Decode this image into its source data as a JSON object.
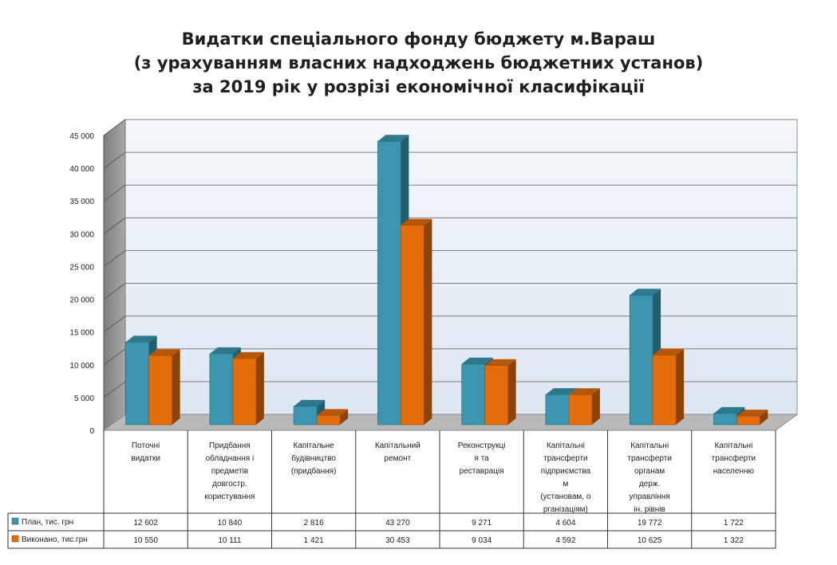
{
  "chart_data": {
    "type": "bar",
    "title_lines": [
      "Видатки спеціального фонду бюджету м.Вараш",
      "(з урахуванням власних надходжень бюджетних установ)",
      "за 2019 рік у розрізі економічної класифікації"
    ],
    "categories": [
      [
        "Поточні",
        "видатки"
      ],
      [
        "Придбання",
        "обладнання і",
        "предметів",
        "довгостр.",
        "користування"
      ],
      [
        "Капітальне",
        "будівництво",
        "(придбання)"
      ],
      [
        "Капітальний",
        "ремонт"
      ],
      [
        "Реконструкці",
        "я та",
        "реставрація"
      ],
      [
        "Капітальні",
        "трансферти",
        "підприємства",
        "м",
        "(установам, о",
        "рганізаціям)"
      ],
      [
        "Капітальні",
        "трансферти",
        "органам",
        "держ.",
        "управління",
        "ін. рівнів"
      ],
      [
        "Капітальні",
        "трансферти",
        "населенню"
      ]
    ],
    "series": [
      {
        "name": "План, тис. грн",
        "color": "#3a96b0",
        "values": [
          12602,
          10840,
          2816,
          43270,
          9271,
          4604,
          19772,
          1722
        ],
        "labels": [
          "12 602",
          "10 840",
          "2 816",
          "43 270",
          "9 271",
          "4 604",
          "19 772",
          "1 722"
        ]
      },
      {
        "name": "Виконано, тис.грн",
        "color": "#e46c0a",
        "values": [
          10550,
          10111,
          1421,
          30453,
          9034,
          4592,
          10625,
          1322
        ],
        "labels": [
          "10 550",
          "10 111",
          "1 421",
          "30 453",
          "9 034",
          "4 592",
          "10 625",
          "1 322"
        ]
      }
    ],
    "ylim": [
      0,
      45000
    ],
    "yticks": [
      0,
      5000,
      10000,
      15000,
      20000,
      25000,
      30000,
      35000,
      40000,
      45000
    ],
    "ytick_labels": [
      "0",
      "5 000",
      "10 000",
      "15 000",
      "20 000",
      "25 000",
      "30 000",
      "35 000",
      "40 000",
      "45 000"
    ],
    "grid": true,
    "legend": "data-table"
  }
}
